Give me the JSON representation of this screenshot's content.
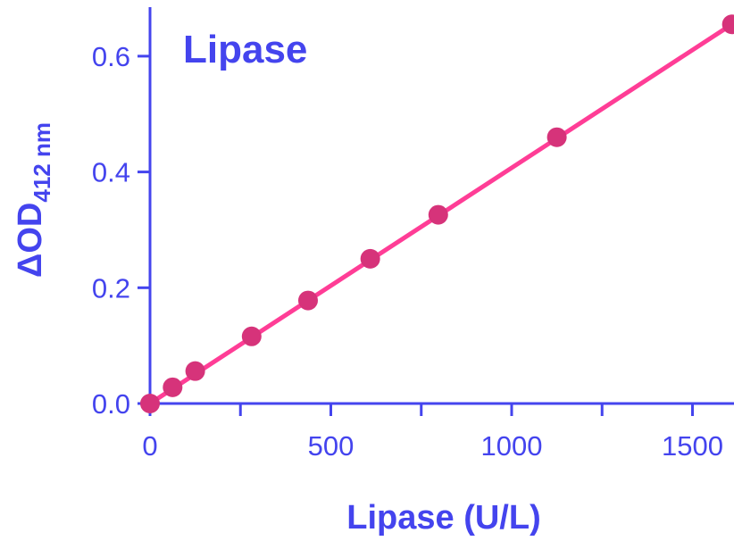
{
  "colors": {
    "axis": "#4444ee",
    "text": "#4444ee",
    "title": "#4444ee",
    "line": "#ff3d96",
    "marker": "#d6337a"
  },
  "chart_data": {
    "type": "scatter",
    "title": "Lipase",
    "xlabel": "Lipase (U/L)",
    "ylabel_main": "ΔOD",
    "ylabel_sub": "412 nm",
    "xlim": [
      0,
      1600
    ],
    "ylim": [
      0,
      0.66
    ],
    "xticks": [
      0,
      500,
      1000,
      1500
    ],
    "xticks_minor": [
      250,
      750,
      1250
    ],
    "yticks": [
      0.0,
      0.2,
      0.4,
      0.6
    ],
    "xtick_labels": [
      "0",
      "500",
      "1000",
      "1500"
    ],
    "ytick_labels": [
      "0.0",
      "0.2",
      "0.4",
      "0.6"
    ],
    "grid": false,
    "series": [
      {
        "x": [
          0,
          62.5,
          125,
          281,
          437,
          609,
          797,
          1125,
          1609
        ],
        "y": [
          0.0,
          0.028,
          0.056,
          0.116,
          0.178,
          0.25,
          0.326,
          0.46,
          0.655
        ]
      }
    ],
    "fit_line": {
      "x": [
        0,
        1609
      ],
      "y": [
        0.0,
        0.655
      ]
    }
  }
}
